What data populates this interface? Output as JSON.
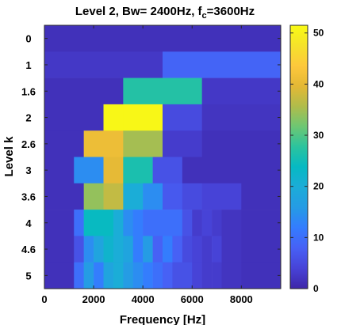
{
  "chart_data": {
    "type": "heatmap",
    "title": {
      "main": "Level 2, Bw= 2400Hz, f",
      "sub": "c",
      "rest": "=3600Hz"
    },
    "xlabel": "Frequency [Hz]",
    "ylabel": "Level k",
    "x_ticks": [
      "0",
      "2000",
      "4000",
      "6000",
      "8000"
    ],
    "x_tick_values": [
      0,
      2000,
      4000,
      6000,
      8000
    ],
    "xlim": [
      0,
      9600
    ],
    "y_ticks": [
      "0",
      "1",
      "1.6",
      "2",
      "2.6",
      "3",
      "3.6",
      "4",
      "4.6",
      "5"
    ],
    "colorbar": {
      "ticks": [
        "0",
        "10",
        "20",
        "30",
        "40",
        "50"
      ],
      "tick_values": [
        0,
        10,
        20,
        30,
        40,
        50
      ],
      "clim": [
        0,
        51.5
      ]
    },
    "colormap": [
      "#3e26a8",
      "#4743d7",
      "#4760f5",
      "#347cfe",
      "#259be5",
      "#1cacd8",
      "#06b9c3",
      "#2bc39e",
      "#6dc773",
      "#b0bc4b",
      "#e4b835",
      "#fdc83c",
      "#f5e22b",
      "#f9fa14"
    ],
    "rows": [
      {
        "level": "0",
        "segments": [
          [
            0,
            9600,
            1.5
          ]
        ]
      },
      {
        "level": "1",
        "segments": [
          [
            0,
            4800,
            2.5
          ],
          [
            4800,
            9600,
            8.5
          ]
        ]
      },
      {
        "level": "1.6",
        "segments": [
          [
            0,
            3200,
            1.5
          ],
          [
            3200,
            4800,
            27
          ],
          [
            4800,
            6400,
            27
          ],
          [
            6400,
            9600,
            2.5
          ]
        ]
      },
      {
        "level": "2",
        "segments": [
          [
            0,
            2400,
            1.5
          ],
          [
            2400,
            3200,
            51
          ],
          [
            3200,
            4800,
            51
          ],
          [
            4800,
            6400,
            5
          ],
          [
            6400,
            9600,
            2
          ]
        ]
      },
      {
        "level": "2.6",
        "segments": [
          [
            0,
            1600,
            1.5
          ],
          [
            1600,
            3200,
            41
          ],
          [
            3200,
            4800,
            35
          ],
          [
            4800,
            6400,
            3
          ],
          [
            6400,
            9600,
            1.5
          ]
        ]
      },
      {
        "level": "3",
        "segments": [
          [
            0,
            1200,
            1.5
          ],
          [
            1200,
            2400,
            14
          ],
          [
            2400,
            3200,
            40
          ],
          [
            3200,
            4400,
            26
          ],
          [
            4400,
            5600,
            6
          ],
          [
            5600,
            9600,
            1.5
          ]
        ]
      },
      {
        "level": "3.6",
        "segments": [
          [
            0,
            1600,
            1.5
          ],
          [
            1600,
            2400,
            34
          ],
          [
            2400,
            3200,
            37
          ],
          [
            3200,
            4000,
            20
          ],
          [
            4000,
            4800,
            14
          ],
          [
            4800,
            5600,
            7
          ],
          [
            5600,
            6400,
            5
          ],
          [
            6400,
            7200,
            4
          ],
          [
            7200,
            8000,
            4
          ],
          [
            8000,
            9600,
            1.5
          ]
        ]
      },
      {
        "level": "4",
        "segments": [
          [
            0,
            1200,
            1.5
          ],
          [
            1200,
            1600,
            10
          ],
          [
            1600,
            2800,
            24
          ],
          [
            2800,
            3200,
            20
          ],
          [
            3200,
            3600,
            14
          ],
          [
            3600,
            4000,
            12
          ],
          [
            4000,
            5600,
            10
          ],
          [
            5600,
            6000,
            6
          ],
          [
            6000,
            6400,
            3
          ],
          [
            6400,
            6800,
            4
          ],
          [
            6800,
            7200,
            3
          ],
          [
            7200,
            8000,
            2
          ],
          [
            8000,
            9600,
            1.5
          ]
        ]
      },
      {
        "level": "4.6",
        "segments": [
          [
            0,
            1200,
            1.5
          ],
          [
            1200,
            1600,
            6
          ],
          [
            1600,
            2000,
            14
          ],
          [
            2000,
            2400,
            18
          ],
          [
            2400,
            2800,
            22
          ],
          [
            2800,
            3200,
            20
          ],
          [
            3200,
            3600,
            18
          ],
          [
            3600,
            4000,
            12
          ],
          [
            4000,
            4400,
            16
          ],
          [
            4400,
            4800,
            8
          ],
          [
            4800,
            5200,
            12
          ],
          [
            5200,
            5600,
            8
          ],
          [
            5600,
            6000,
            5
          ],
          [
            6000,
            6400,
            4
          ],
          [
            6400,
            6800,
            3
          ],
          [
            6800,
            7200,
            4
          ],
          [
            7200,
            8000,
            2
          ],
          [
            8000,
            9600,
            1.5
          ]
        ]
      },
      {
        "level": "5",
        "segments": [
          [
            0,
            1200,
            1.5
          ],
          [
            1200,
            1600,
            10
          ],
          [
            1600,
            2000,
            16
          ],
          [
            2000,
            2400,
            12
          ],
          [
            2400,
            2800,
            18
          ],
          [
            2800,
            3200,
            20
          ],
          [
            3200,
            3600,
            16
          ],
          [
            3600,
            4000,
            14
          ],
          [
            4000,
            4400,
            12
          ],
          [
            4400,
            4800,
            10
          ],
          [
            4800,
            5200,
            8
          ],
          [
            5200,
            5600,
            6
          ],
          [
            5600,
            6000,
            6
          ],
          [
            6000,
            6400,
            4
          ],
          [
            6400,
            6800,
            3
          ],
          [
            6800,
            7200,
            3
          ],
          [
            7200,
            8000,
            2
          ],
          [
            8000,
            9600,
            1.5
          ]
        ]
      }
    ]
  }
}
